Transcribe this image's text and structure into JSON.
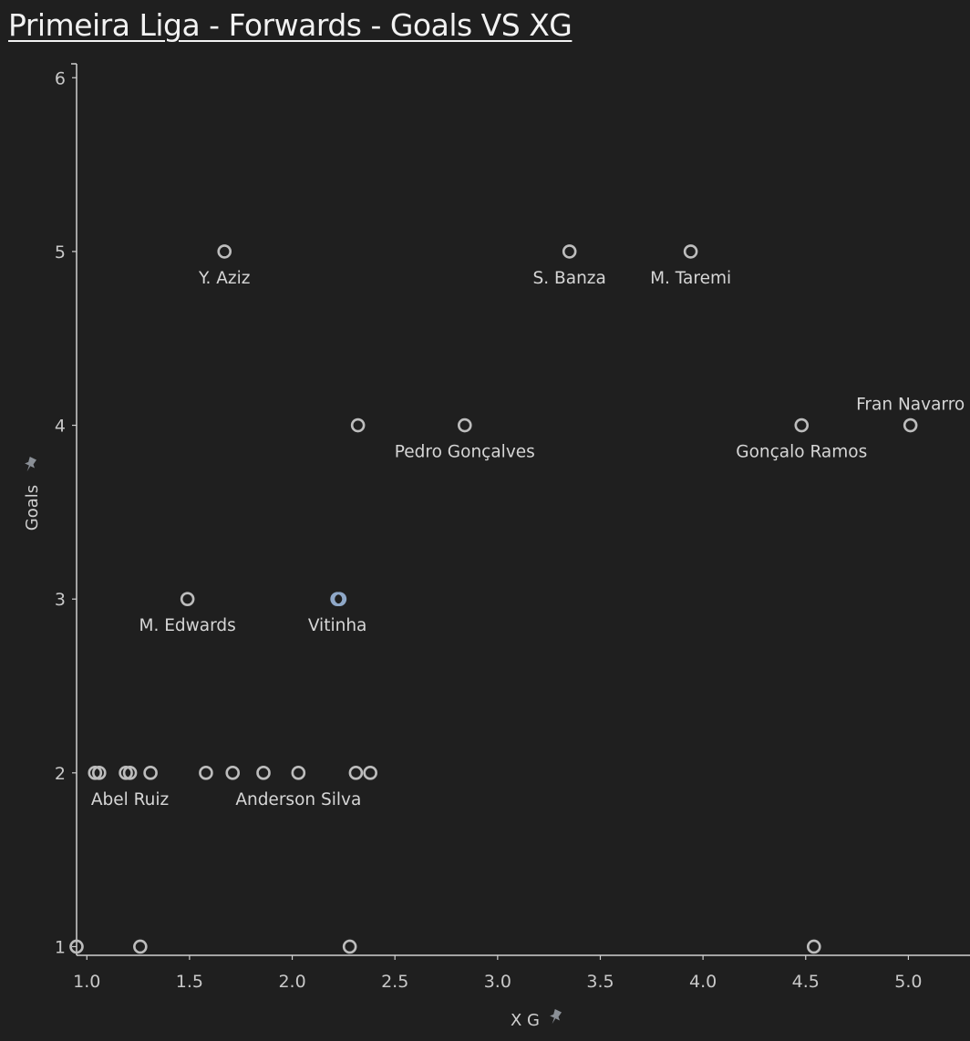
{
  "chart_data": {
    "type": "scatter",
    "title": "Primeira Liga - Forwards - Goals VS XG",
    "xlabel": "X G",
    "ylabel": "Goals",
    "xlim": [
      0.95,
      5.3
    ],
    "ylim": [
      0.95,
      6.08
    ],
    "x_ticks": [
      {
        "value": 1.0,
        "label": "1.0"
      },
      {
        "value": 1.5,
        "label": "1.5"
      },
      {
        "value": 2.0,
        "label": "2.0"
      },
      {
        "value": 2.5,
        "label": "2.5"
      },
      {
        "value": 3.0,
        "label": "3.0"
      },
      {
        "value": 3.5,
        "label": "3.5"
      },
      {
        "value": 4.0,
        "label": "4.0"
      },
      {
        "value": 4.5,
        "label": "4.5"
      },
      {
        "value": 5.0,
        "label": "5.0"
      }
    ],
    "y_ticks": [
      {
        "value": 1,
        "label": "1"
      },
      {
        "value": 2,
        "label": "2"
      },
      {
        "value": 3,
        "label": "3"
      },
      {
        "value": 4,
        "label": "4"
      },
      {
        "value": 5,
        "label": "5"
      },
      {
        "value": 6,
        "label": "6"
      }
    ],
    "points": [
      {
        "x": 1.67,
        "y": 5,
        "label": "Y. Aziz"
      },
      {
        "x": 3.35,
        "y": 5,
        "label": "S. Banza"
      },
      {
        "x": 3.94,
        "y": 5,
        "label": "M. Taremi"
      },
      {
        "x": 2.32,
        "y": 4,
        "label": ""
      },
      {
        "x": 2.84,
        "y": 4,
        "label": "Pedro Gonçalves"
      },
      {
        "x": 4.48,
        "y": 4,
        "label": "Gonçalo Ramos"
      },
      {
        "x": 5.01,
        "y": 4,
        "label": "Fran Navarro",
        "label_pos": "above"
      },
      {
        "x": 1.49,
        "y": 3,
        "label": "M. Edwards"
      },
      {
        "x": 2.22,
        "y": 3,
        "label": "Vitinha",
        "highlight": true
      },
      {
        "x": 2.23,
        "y": 3,
        "label": "",
        "highlight": true
      },
      {
        "x": 1.04,
        "y": 2,
        "label": ""
      },
      {
        "x": 1.06,
        "y": 2,
        "label": ""
      },
      {
        "x": 1.19,
        "y": 2,
        "label": ""
      },
      {
        "x": 1.21,
        "y": 2,
        "label": "Abel Ruiz"
      },
      {
        "x": 1.31,
        "y": 2,
        "label": ""
      },
      {
        "x": 1.58,
        "y": 2,
        "label": ""
      },
      {
        "x": 1.71,
        "y": 2,
        "label": ""
      },
      {
        "x": 1.86,
        "y": 2,
        "label": ""
      },
      {
        "x": 2.03,
        "y": 2,
        "label": "Anderson Silva"
      },
      {
        "x": 2.31,
        "y": 2,
        "label": ""
      },
      {
        "x": 2.38,
        "y": 2,
        "label": ""
      },
      {
        "x": 0.95,
        "y": 1,
        "label": ""
      },
      {
        "x": 1.26,
        "y": 1,
        "label": ""
      },
      {
        "x": 2.28,
        "y": 1,
        "label": ""
      },
      {
        "x": 4.54,
        "y": 1,
        "label": ""
      }
    ],
    "grid": false,
    "legend": "none",
    "colors": {
      "background": "#1f1f1f",
      "axis": "#d0d0d0",
      "marker": "#bdbdbd",
      "highlight_marker": "#8fa8c8",
      "text": "#d6d6d6"
    }
  }
}
